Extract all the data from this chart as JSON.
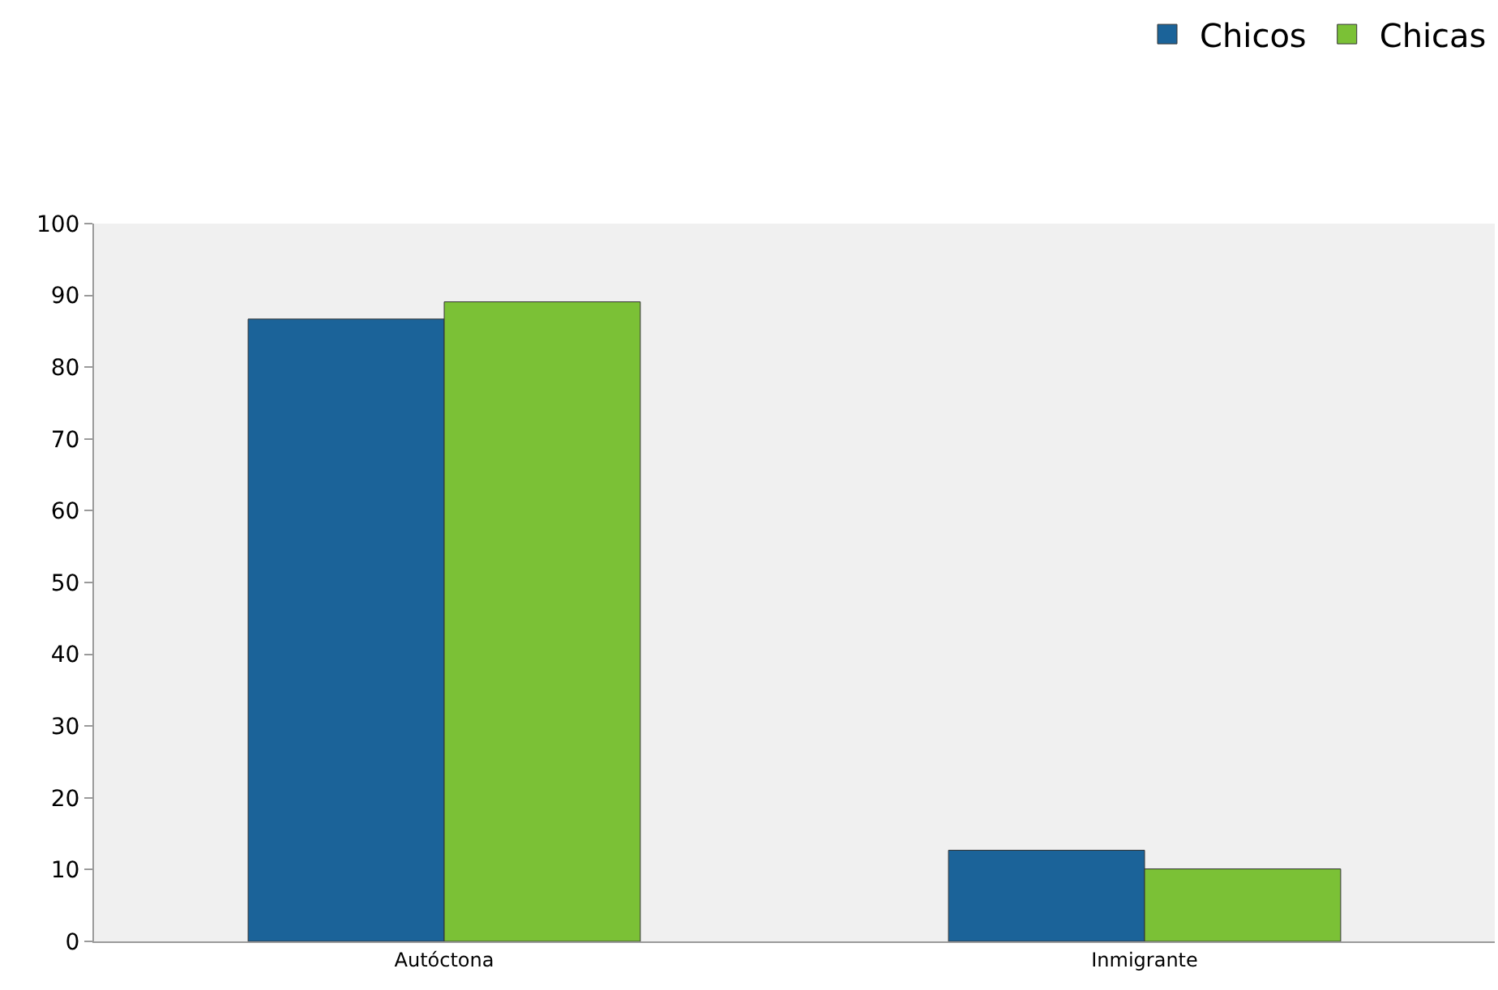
{
  "chart_data": {
    "type": "bar",
    "categories": [
      "Autóctona",
      "Inmigrante"
    ],
    "series": [
      {
        "name": "Chicos",
        "color": "#1b6399",
        "values": [
          86.7,
          12.7
        ]
      },
      {
        "name": "Chicas",
        "color": "#7bc136",
        "values": [
          89.1,
          10.1
        ]
      }
    ],
    "ylim": [
      0,
      100
    ],
    "yticks": [
      0,
      10,
      20,
      30,
      40,
      50,
      60,
      70,
      80,
      90,
      100
    ],
    "grid": false,
    "legend": "top right"
  }
}
